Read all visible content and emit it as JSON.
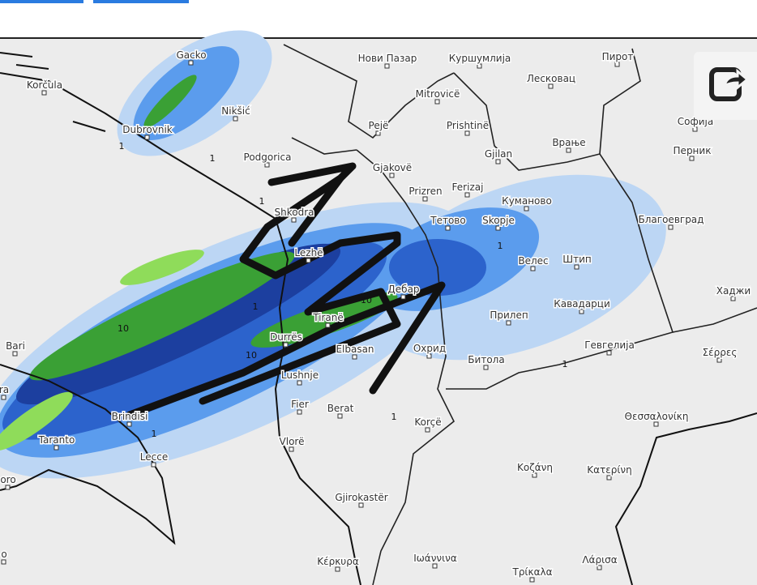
{
  "places": [
    {
      "label": "Gacko"
    },
    {
      "label": "Korčula"
    },
    {
      "label": "Nikšić"
    },
    {
      "label": "Dubrovnik"
    },
    {
      "label": "Podgorica"
    },
    {
      "label": "Shkodra"
    },
    {
      "label": "Lezhë"
    },
    {
      "label": "Tiranë"
    },
    {
      "label": "Durrës"
    },
    {
      "label": "Elbasan"
    },
    {
      "label": "Lushnje"
    },
    {
      "label": "Fier"
    },
    {
      "label": "Berat"
    },
    {
      "label": "Vlorë"
    },
    {
      "label": "Gjirokastër"
    },
    {
      "label": "Korçë"
    },
    {
      "label": "Охрид"
    },
    {
      "label": "Битола"
    },
    {
      "label": "Прилеп"
    },
    {
      "label": "Кавадарци"
    },
    {
      "label": "Велес"
    },
    {
      "label": "Штип"
    },
    {
      "label": "Гевгелија"
    },
    {
      "label": "Skopje"
    },
    {
      "label": "Тетово"
    },
    {
      "label": "Куманово"
    },
    {
      "label": "Ferizaj"
    },
    {
      "label": "Prizren"
    },
    {
      "label": "Gjakovë"
    },
    {
      "label": "Pejë"
    },
    {
      "label": "Gjilan"
    },
    {
      "label": "Prishtinë"
    },
    {
      "label": "Врање"
    },
    {
      "label": "Mitrovicë"
    },
    {
      "label": "Нови Пазар"
    },
    {
      "label": "Куршумлија"
    },
    {
      "label": "Лесковац"
    },
    {
      "label": "Пирот"
    },
    {
      "label": "Софија"
    },
    {
      "label": "Перник"
    },
    {
      "label": "Благоевград"
    },
    {
      "label": "Хаджи"
    },
    {
      "label": "Σέρρες"
    },
    {
      "label": "Θεσσαλονίκη"
    },
    {
      "label": "Κοζάνη"
    },
    {
      "label": "Κατερίνη"
    },
    {
      "label": "Λάρισα"
    },
    {
      "label": "Τρίκαλα"
    },
    {
      "label": "Ιωάννινα"
    },
    {
      "label": "Κέρκυρα"
    },
    {
      "label": "Bari"
    },
    {
      "label": "Brindisi"
    },
    {
      "label": "Taranto"
    },
    {
      "label": "Lecce"
    },
    {
      "label": "Дебар"
    },
    {
      "label": "ra"
    },
    {
      "label": "oro"
    },
    {
      "label": "o"
    }
  ],
  "contour_labels": [
    "1",
    "1",
    "1",
    "1",
    "10",
    "10",
    "10",
    "1",
    "1",
    "1",
    "1"
  ]
}
